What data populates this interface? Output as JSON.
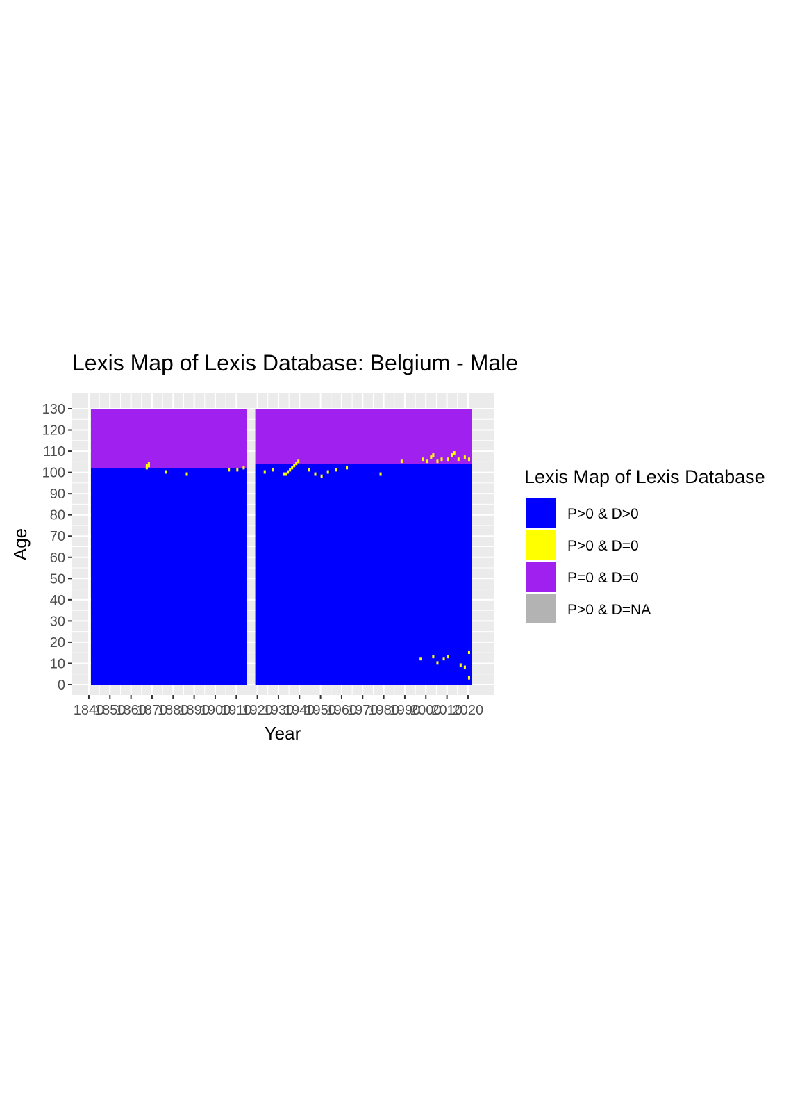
{
  "chart_data": {
    "type": "heatmap",
    "title": "Lexis Map of Lexis Database: Belgium - Male",
    "xlabel": "Year",
    "ylabel": "Age",
    "xlim": [
      1841,
      2022
    ],
    "ylim": [
      0,
      130
    ],
    "x_ticks": [
      "1840",
      "1850",
      "1860",
      "1870",
      "1880",
      "1890",
      "1900",
      "1910",
      "1920",
      "1930",
      "1940",
      "1950",
      "1960",
      "1970",
      "1980",
      "1990",
      "2000",
      "2010",
      "2020"
    ],
    "y_ticks": [
      "0",
      "10",
      "20",
      "30",
      "40",
      "50",
      "60",
      "70",
      "80",
      "90",
      "100",
      "110",
      "120",
      "130"
    ],
    "grid": true,
    "legend": {
      "title": "Lexis Map of Lexis Database",
      "position": "right",
      "items": [
        {
          "label": "P>0 & D>0",
          "color": "#0000FF"
        },
        {
          "label": "P>0 & D=0",
          "color": "#FFFF00"
        },
        {
          "label": "P=0 & D=0",
          "color": "#A020F0"
        },
        {
          "label": "P>0 & D=NA",
          "color": "#B3B3B3"
        }
      ]
    },
    "missing_years": [
      1914,
      1915,
      1916,
      1917,
      1918
    ],
    "boundary": [
      {
        "period": [
          1841,
          1914
        ],
        "age_max_observed_approx": 102
      },
      {
        "period": [
          1919,
          1960
        ],
        "age_max_observed_approx": 102
      },
      {
        "period": [
          1960,
          1990
        ],
        "age_max_observed_approx": 105
      },
      {
        "period": [
          1990,
          2021
        ],
        "age_max_observed_approx": 106
      }
    ],
    "regions": [
      {
        "category": "P>0 & D>0",
        "years": [
          1841,
          1914
        ],
        "ages": [
          0,
          102
        ]
      },
      {
        "category": "P=0 & D=0",
        "years": [
          1841,
          1914
        ],
        "ages": [
          102,
          130
        ]
      },
      {
        "category": "P>0 & D>0",
        "years": [
          1919,
          2021
        ],
        "ages": [
          0,
          104
        ]
      },
      {
        "category": "P=0 & D=0",
        "years": [
          1919,
          2021
        ],
        "ages": [
          104,
          130
        ]
      }
    ],
    "yellow_cells_approx": [
      [
        1867,
        102
      ],
      [
        1867,
        103
      ],
      [
        1868,
        103
      ],
      [
        1868,
        104
      ],
      [
        1876,
        100
      ],
      [
        1886,
        99
      ],
      [
        1906,
        101
      ],
      [
        1910,
        101
      ],
      [
        1913,
        102
      ],
      [
        1923,
        100
      ],
      [
        1927,
        101
      ],
      [
        1932,
        99
      ],
      [
        1933,
        99
      ],
      [
        1934,
        100
      ],
      [
        1935,
        101
      ],
      [
        1936,
        102
      ],
      [
        1937,
        103
      ],
      [
        1938,
        104
      ],
      [
        1939,
        105
      ],
      [
        1944,
        101
      ],
      [
        1947,
        99
      ],
      [
        1950,
        98
      ],
      [
        1953,
        100
      ],
      [
        1957,
        101
      ],
      [
        1962,
        102
      ],
      [
        1978,
        99
      ],
      [
        1988,
        105
      ],
      [
        1998,
        106
      ],
      [
        2000,
        105
      ],
      [
        2002,
        107
      ],
      [
        2003,
        108
      ],
      [
        2005,
        105
      ],
      [
        2007,
        106
      ],
      [
        2010,
        106
      ],
      [
        2012,
        108
      ],
      [
        2013,
        109
      ],
      [
        2015,
        106
      ],
      [
        2018,
        107
      ],
      [
        2020,
        106
      ],
      [
        1997,
        12
      ],
      [
        2003,
        13
      ],
      [
        2005,
        10
      ],
      [
        2008,
        12
      ],
      [
        2010,
        13
      ],
      [
        2016,
        9
      ],
      [
        2018,
        8
      ],
      [
        2020,
        15
      ],
      [
        2020,
        3
      ]
    ]
  }
}
